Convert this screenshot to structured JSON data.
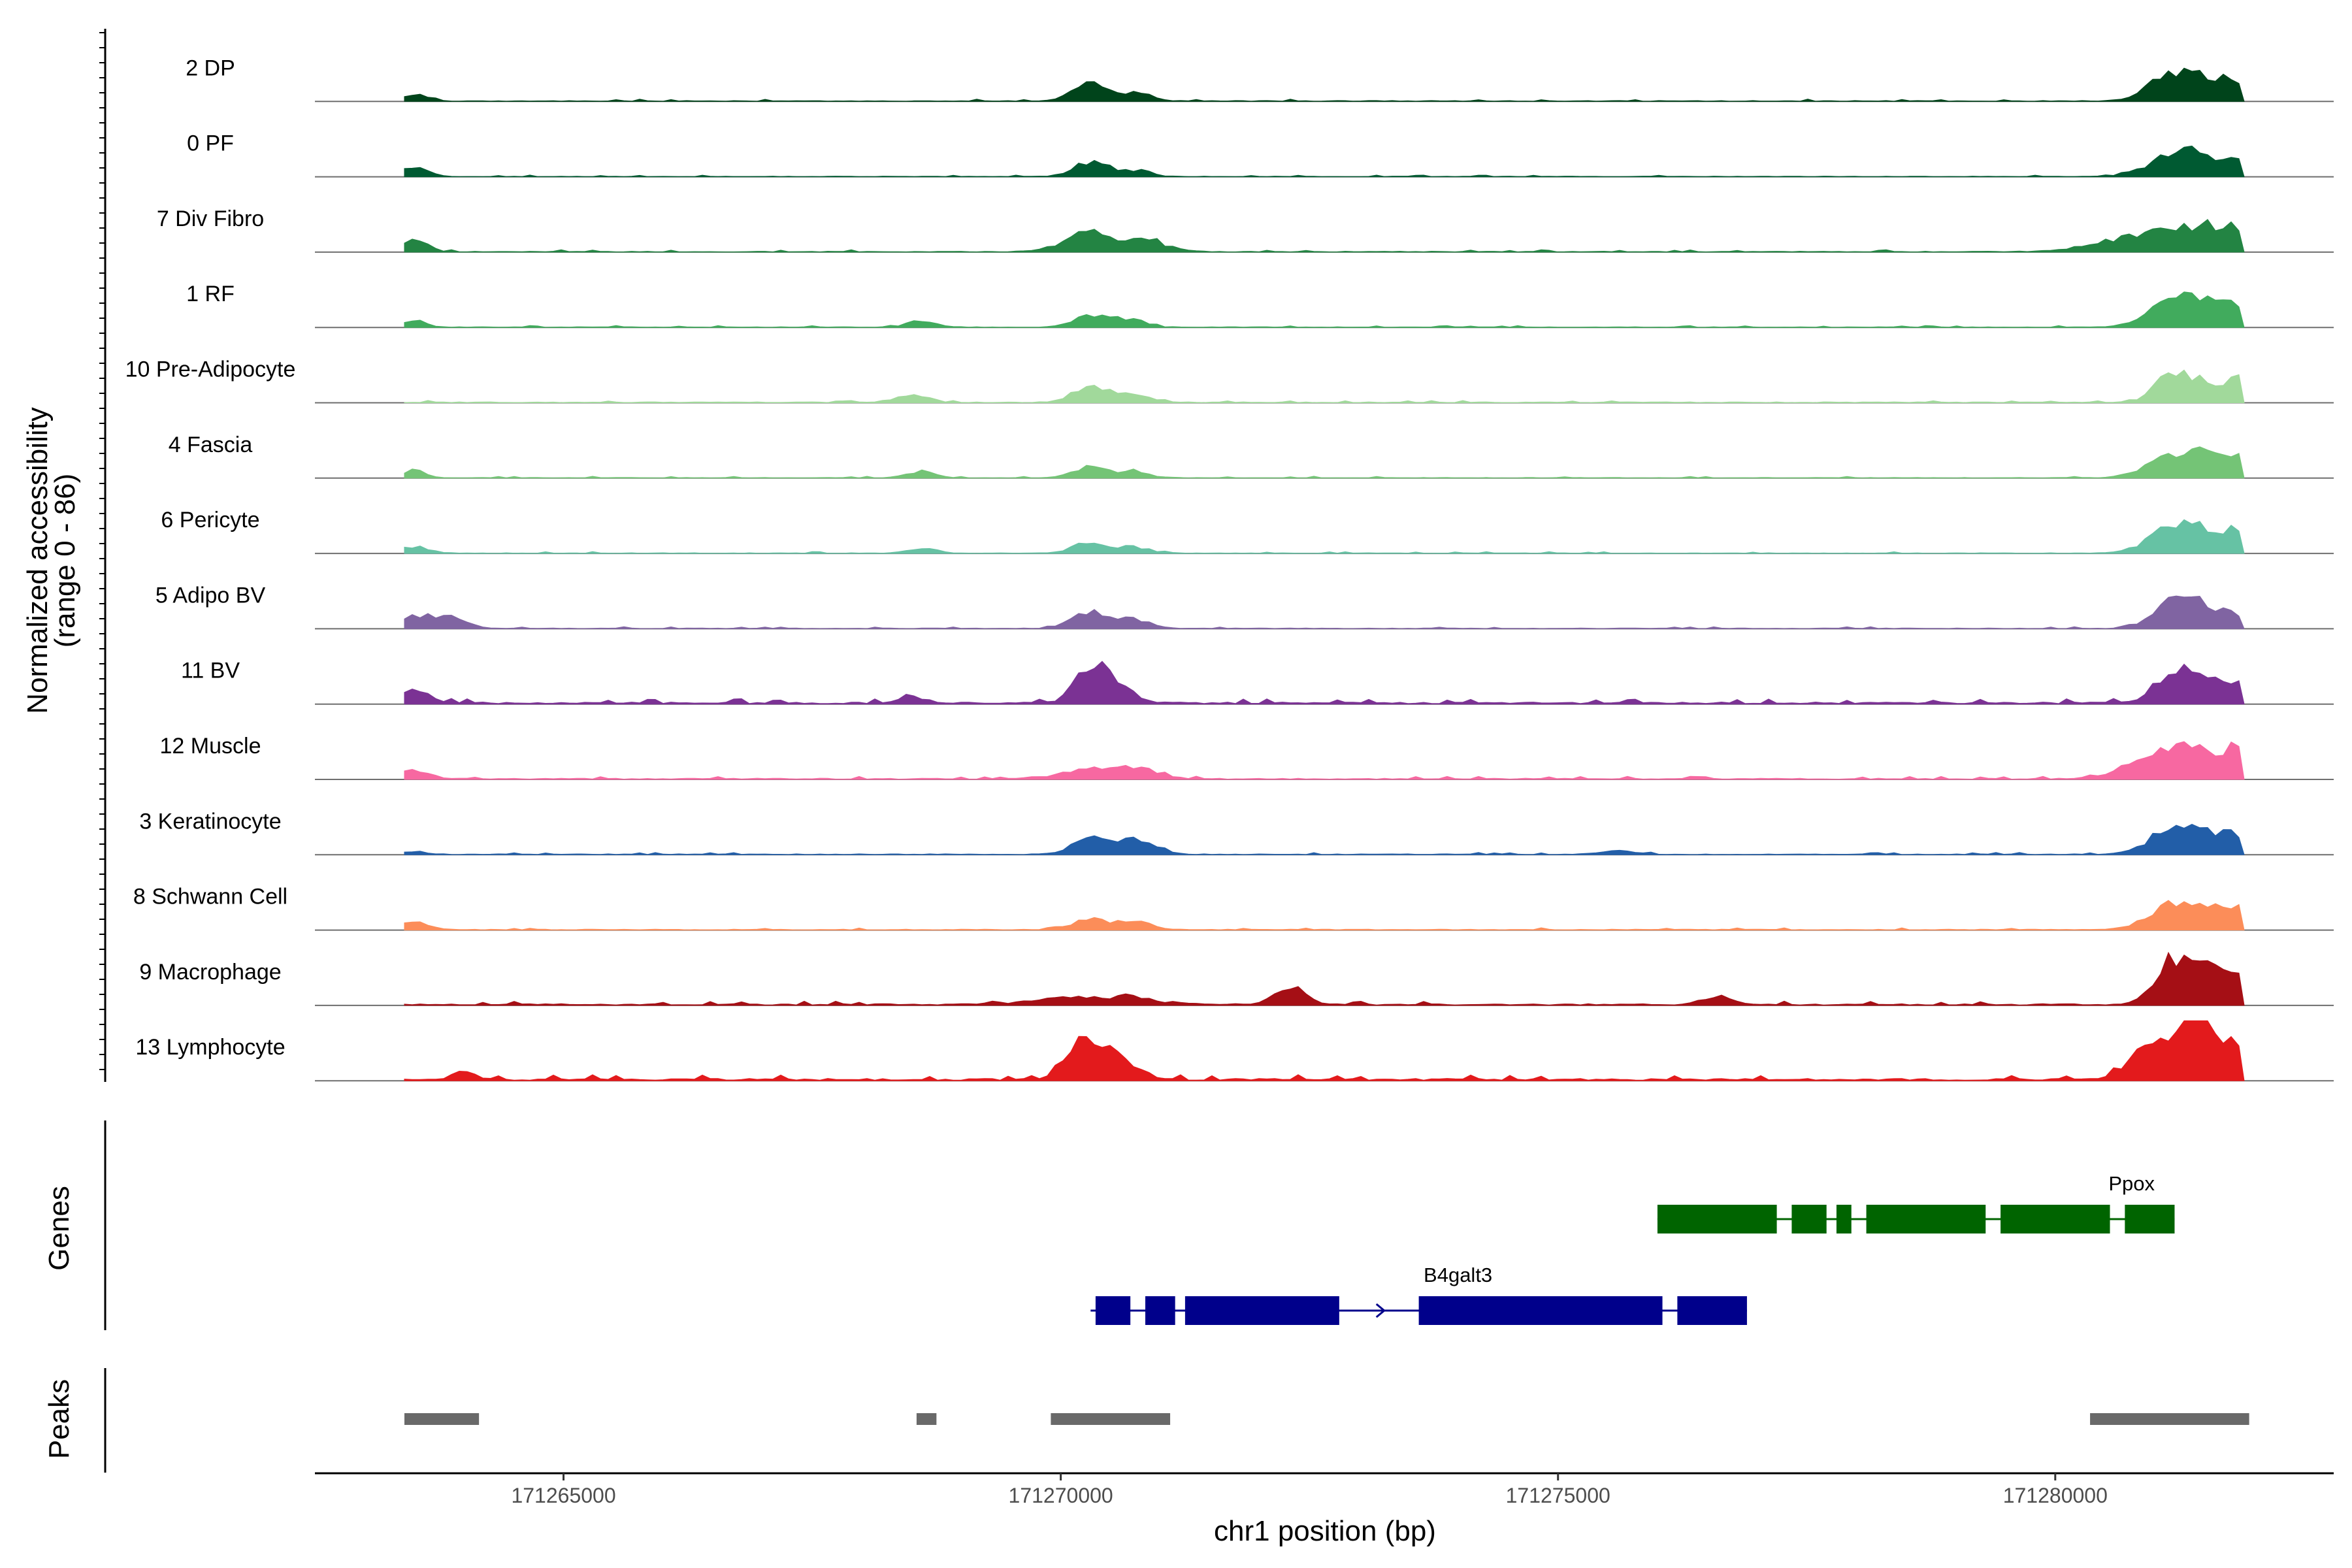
{
  "chart_data": {
    "type": "area",
    "subtype": "genome-coverage-track",
    "chromosome": "chr1",
    "xlabel": "chr1 position (bp)",
    "xlim": [
      171262500,
      171282800
    ],
    "region": [
      171263400,
      171281900
    ],
    "xticks": [
      171265000,
      171270000,
      171275000,
      171280000
    ],
    "xtick_labels": [
      "171265000",
      "171270000",
      "171275000",
      "171280000"
    ],
    "ylabel": "Normalized accessibility",
    "ylabel_range": "(range 0 - 86)",
    "ylim": [
      0,
      86
    ],
    "series": [
      {
        "name": "2 DP",
        "color": "#00441b",
        "level": 0.55,
        "base": 0.015,
        "peaks": [
          [
            171263500,
            0.18,
            120
          ],
          [
            171270300,
            0.45,
            170
          ],
          [
            171270750,
            0.2,
            150
          ],
          [
            171281200,
            0.62,
            250
          ],
          [
            171281600,
            0.42,
            200
          ],
          [
            171281850,
            0.28,
            120
          ]
        ]
      },
      {
        "name": "0 PF",
        "color": "#005a32",
        "level": 0.5,
        "base": 0.012,
        "peaks": [
          [
            171263500,
            0.25,
            140
          ],
          [
            171270300,
            0.4,
            170
          ],
          [
            171270750,
            0.18,
            150
          ],
          [
            171281200,
            0.62,
            250
          ],
          [
            171281600,
            0.4,
            200
          ],
          [
            171281850,
            0.3,
            120
          ]
        ]
      },
      {
        "name": "7 Div Fibro",
        "color": "#238443",
        "level": 0.55,
        "base": 0.015,
        "peaks": [
          [
            171263500,
            0.3,
            130
          ],
          [
            171270300,
            0.5,
            250
          ],
          [
            171270900,
            0.25,
            200
          ],
          [
            171281000,
            0.5,
            450
          ],
          [
            171281600,
            0.45,
            250
          ],
          [
            171281850,
            0.35,
            120
          ]
        ]
      },
      {
        "name": "1 RF",
        "color": "#41ab5d",
        "level": 0.55,
        "base": 0.012,
        "peaks": [
          [
            171263500,
            0.14,
            120
          ],
          [
            171268600,
            0.14,
            150
          ],
          [
            171270300,
            0.28,
            170
          ],
          [
            171270700,
            0.2,
            150
          ],
          [
            171281200,
            0.62,
            250
          ],
          [
            171281600,
            0.45,
            200
          ],
          [
            171281850,
            0.3,
            120
          ]
        ]
      },
      {
        "name": "10 Pre-Adipocyte",
        "color": "#a1d99b",
        "level": 0.6,
        "base": 0.014,
        "peaks": [
          [
            171268500,
            0.18,
            160
          ],
          [
            171270300,
            0.4,
            170
          ],
          [
            171270750,
            0.18,
            150
          ],
          [
            171281200,
            0.75,
            170
          ],
          [
            171281550,
            0.35,
            180
          ],
          [
            171281850,
            0.5,
            120
          ]
        ]
      },
      {
        "name": "4 Fascia",
        "color": "#74c476",
        "level": 0.55,
        "base": 0.012,
        "peaks": [
          [
            171263500,
            0.18,
            120
          ],
          [
            171268600,
            0.14,
            150
          ],
          [
            171270300,
            0.28,
            170
          ],
          [
            171270750,
            0.15,
            150
          ],
          [
            171281200,
            0.62,
            250
          ],
          [
            171281600,
            0.45,
            200
          ],
          [
            171281850,
            0.3,
            120
          ]
        ]
      },
      {
        "name": "6 Pericyte",
        "color": "#66c2a4",
        "level": 0.55,
        "base": 0.012,
        "peaks": [
          [
            171263500,
            0.15,
            160
          ],
          [
            171268600,
            0.12,
            150
          ],
          [
            171270300,
            0.28,
            170
          ],
          [
            171270750,
            0.15,
            150
          ],
          [
            171281200,
            0.62,
            250
          ],
          [
            171281600,
            0.45,
            200
          ],
          [
            171281850,
            0.3,
            120
          ]
        ]
      },
      {
        "name": "5 Adipo BV",
        "color": "#8064a2",
        "level": 0.6,
        "base": 0.012,
        "peaks": [
          [
            171263500,
            0.32,
            200
          ],
          [
            171263900,
            0.2,
            150
          ],
          [
            171270300,
            0.4,
            180
          ],
          [
            171270750,
            0.2,
            150
          ],
          [
            171281200,
            0.75,
            200
          ],
          [
            171281550,
            0.42,
            160
          ],
          [
            171281850,
            0.3,
            120
          ]
        ]
      },
      {
        "name": "11 BV",
        "color": "#7b3294",
        "level": 0.75,
        "base": 0.025,
        "peaks": [
          [
            171263500,
            0.2,
            160
          ],
          [
            171268500,
            0.12,
            120
          ],
          [
            171270300,
            0.75,
            150
          ],
          [
            171270600,
            0.25,
            150
          ],
          [
            171281200,
            0.55,
            200
          ],
          [
            171281550,
            0.35,
            160
          ],
          [
            171281850,
            0.35,
            120
          ]
        ]
      },
      {
        "name": "12 Muscle",
        "color": "#f768a1",
        "level": 0.55,
        "base": 0.02,
        "peaks": [
          [
            171263500,
            0.22,
            150
          ],
          [
            171270300,
            0.25,
            300
          ],
          [
            171270800,
            0.2,
            200
          ],
          [
            171281100,
            0.62,
            350
          ],
          [
            171281600,
            0.5,
            250
          ],
          [
            171281850,
            0.4,
            120
          ]
        ]
      },
      {
        "name": "3 Keratinocyte",
        "color": "#225ea8",
        "level": 0.55,
        "base": 0.015,
        "peaks": [
          [
            171263500,
            0.08,
            120
          ],
          [
            171270300,
            0.5,
            170
          ],
          [
            171270750,
            0.35,
            200
          ],
          [
            171275600,
            0.12,
            150
          ],
          [
            171281200,
            0.62,
            250
          ],
          [
            171281600,
            0.4,
            200
          ],
          [
            171281850,
            0.25,
            120
          ]
        ]
      },
      {
        "name": "8 Schwann Cell",
        "color": "#fc8d59",
        "level": 0.55,
        "base": 0.015,
        "peaks": [
          [
            171263500,
            0.18,
            140
          ],
          [
            171270300,
            0.3,
            170
          ],
          [
            171270750,
            0.22,
            150
          ],
          [
            171281200,
            0.62,
            250
          ],
          [
            171281600,
            0.45,
            200
          ],
          [
            171281850,
            0.3,
            120
          ]
        ]
      },
      {
        "name": "9 Macrophage",
        "color": "#a50f15",
        "level": 0.75,
        "base": 0.02,
        "peaks": [
          [
            171270300,
            0.15,
            500
          ],
          [
            171272300,
            0.35,
            150
          ],
          [
            171276600,
            0.15,
            150
          ],
          [
            171281200,
            0.9,
            180
          ],
          [
            171281550,
            0.55,
            160
          ],
          [
            171281850,
            0.4,
            120
          ]
        ]
      },
      {
        "name": "13 Lymphocyte",
        "color": "#e31a1c",
        "level": 0.85,
        "base": 0.025,
        "peaks": [
          [
            171264000,
            0.15,
            100
          ],
          [
            171270300,
            0.7,
            200
          ],
          [
            171270700,
            0.2,
            150
          ],
          [
            171280800,
            0.2,
            150
          ],
          [
            171281200,
            0.85,
            250
          ],
          [
            171281550,
            0.5,
            160
          ],
          [
            171281850,
            0.4,
            120
          ]
        ]
      }
    ],
    "genes_track_label": "Genes",
    "genes": [
      {
        "name": "Ppox",
        "strand": "-",
        "color": "#006400",
        "start": 171276000,
        "end": 171281200,
        "exons": [
          [
            171276000,
            171277200
          ],
          [
            171277350,
            171277700
          ],
          [
            171277800,
            171277950
          ],
          [
            171278100,
            171279300
          ],
          [
            171279450,
            171280550
          ],
          [
            171280700,
            171281200
          ]
        ]
      },
      {
        "name": "B4galt3",
        "strand": "+",
        "color": "#00008b",
        "start": 171270300,
        "end": 171276900,
        "exons": [
          [
            171270350,
            171270700
          ],
          [
            171270850,
            171271150
          ],
          [
            171271250,
            171272800
          ],
          [
            171273600,
            171276050
          ],
          [
            171276200,
            171276900
          ]
        ]
      }
    ],
    "peaks_track_label": "Peaks",
    "peaks_color": "#696969",
    "peaks": [
      [
        171263400,
        171264150
      ],
      [
        171268550,
        171268750
      ],
      [
        171269900,
        171271100
      ],
      [
        171280350,
        171281950
      ]
    ]
  }
}
